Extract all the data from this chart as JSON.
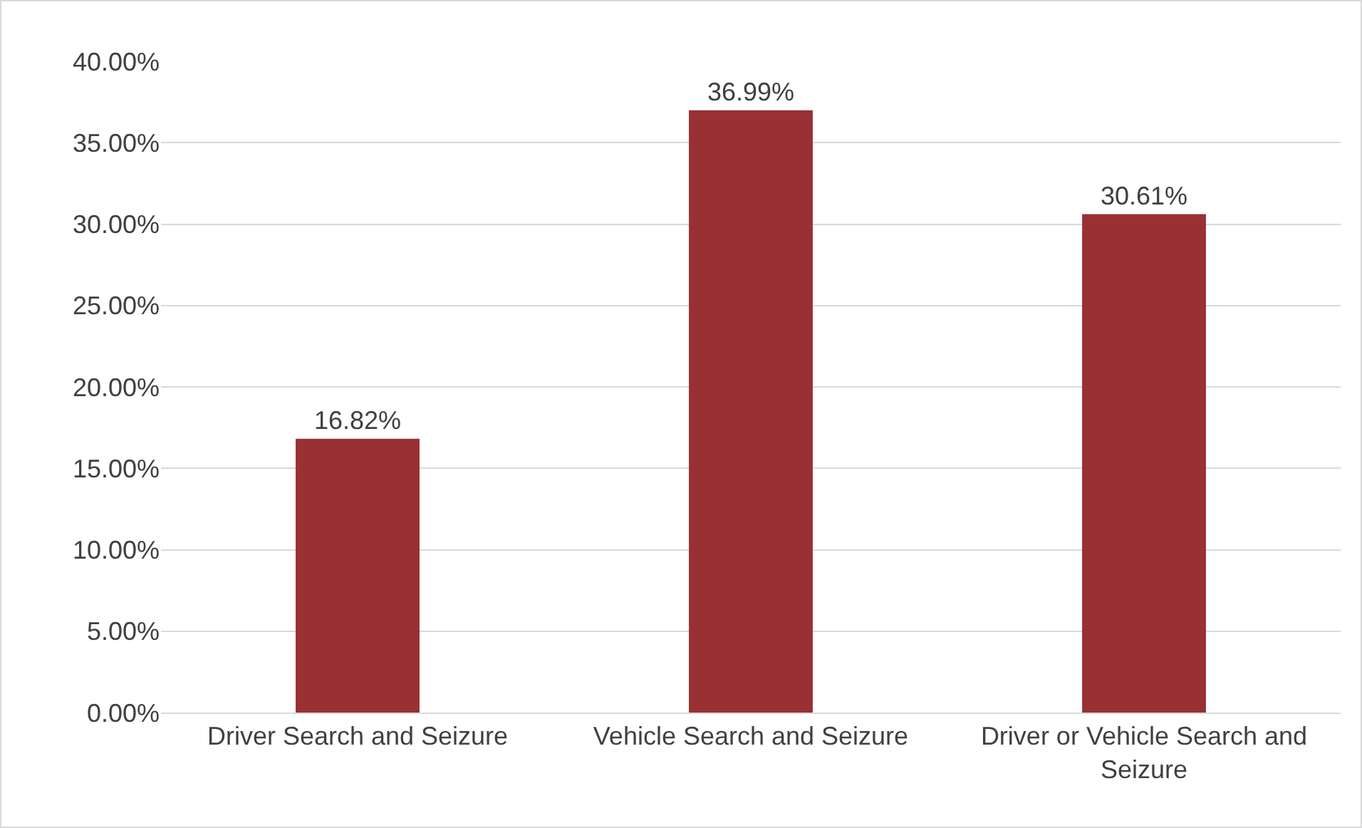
{
  "chart_data": {
    "type": "bar",
    "categories": [
      "Driver Search and Seizure",
      "Vehicle Search and Seizure",
      "Driver or Vehicle Search and Seizure"
    ],
    "values": [
      16.82,
      36.99,
      30.61
    ],
    "color": "#993033",
    "value_labels": [
      "16.82%",
      "36.99%",
      "30.61%"
    ],
    "ylim": [
      0,
      40
    ],
    "yticks": [
      {
        "value": 0,
        "label": "0.00%"
      },
      {
        "value": 5,
        "label": "5.00%"
      },
      {
        "value": 10,
        "label": "10.00%"
      },
      {
        "value": 15,
        "label": "15.00%"
      },
      {
        "value": 20,
        "label": "20.00%"
      },
      {
        "value": 25,
        "label": "25.00%"
      },
      {
        "value": 30,
        "label": "30.00%"
      },
      {
        "value": 35,
        "label": "35.00%"
      },
      {
        "value": 40,
        "label": "40.00%"
      }
    ],
    "grid": "y"
  }
}
